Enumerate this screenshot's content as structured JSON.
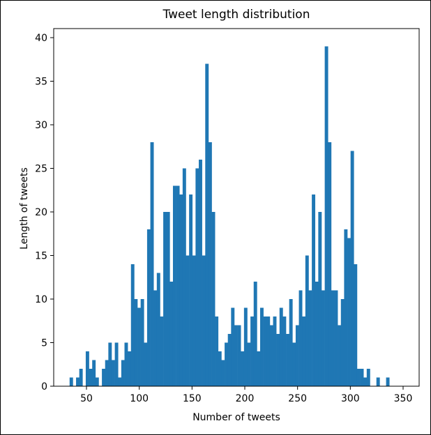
{
  "chart_data": {
    "type": "bar",
    "title": "Tweet length distribution",
    "xlabel": "Number of tweets",
    "ylabel": "Length of tweets",
    "xlim": [
      19,
      354
    ],
    "ylim": [
      0,
      40
    ],
    "xticks": [
      50,
      100,
      150,
      200,
      250,
      300,
      350
    ],
    "yticks": [
      0,
      5,
      10,
      15,
      20,
      25,
      30,
      35,
      40
    ],
    "bar_color": "#1f77b4",
    "bin_start": 34,
    "bin_width": 3.06,
    "values": [
      1,
      0,
      1,
      2,
      0,
      4,
      2,
      3,
      1,
      0,
      2,
      3,
      5,
      3,
      5,
      1,
      3,
      5,
      4,
      14,
      10,
      9,
      10,
      5,
      18,
      28,
      11,
      13,
      8,
      20,
      20,
      12,
      23,
      23,
      22,
      25,
      15,
      22,
      15,
      25,
      26,
      15,
      37,
      28,
      20,
      8,
      4,
      3,
      5,
      6,
      9,
      7,
      7,
      4,
      9,
      5,
      8,
      12,
      4,
      9,
      8,
      8,
      7,
      8,
      6,
      9,
      8,
      6,
      10,
      5,
      7,
      11,
      8,
      15,
      11,
      22,
      12,
      20,
      11,
      39,
      28,
      11,
      11,
      7,
      10,
      18,
      17,
      27,
      14,
      2,
      2,
      1,
      2,
      0,
      0,
      1,
      0,
      0,
      1
    ]
  }
}
